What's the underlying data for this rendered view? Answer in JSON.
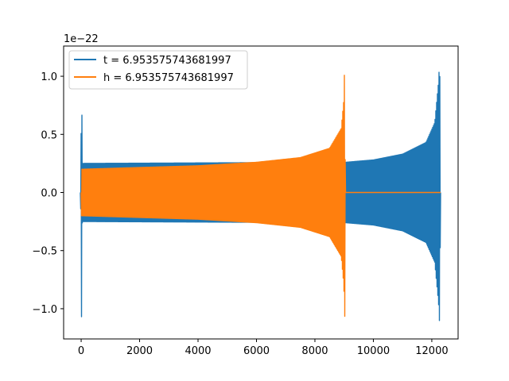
{
  "chart_data": {
    "type": "line",
    "title": "",
    "xlabel": "",
    "ylabel": "",
    "offset_text": "1e−22",
    "xlim": [
      -600,
      12900
    ],
    "ylim": [
      -1.26,
      1.26
    ],
    "xticks": [
      0,
      2000,
      4000,
      6000,
      8000,
      10000,
      12000
    ],
    "xtick_labels": [
      "0",
      "2000",
      "4000",
      "6000",
      "8000",
      "10000",
      "12000"
    ],
    "yticks": [
      -1.0,
      -0.5,
      0.0,
      0.5,
      1.0
    ],
    "ytick_labels": [
      "−1.0",
      "−0.5",
      "0.0",
      "0.5",
      "1.0"
    ],
    "grid": false,
    "legend_position": "upper-left",
    "series": [
      {
        "name": "t = 6.953575743681997",
        "color": "#1f77b4",
        "description": "oscillating waveform, burst near x=0, then growing envelope up to merger near x~12280",
        "envelope": [
          {
            "x": -20,
            "amp": 0.0
          },
          {
            "x": 0,
            "amp": 0.54
          },
          {
            "x": 10,
            "amp": 1.14
          },
          {
            "x": 40,
            "amp": 0.25
          },
          {
            "x": 9050,
            "amp": 0.26
          },
          {
            "x": 10000,
            "amp": 0.28
          },
          {
            "x": 11000,
            "amp": 0.33
          },
          {
            "x": 11800,
            "amp": 0.43
          },
          {
            "x": 12100,
            "amp": 0.6
          },
          {
            "x": 12230,
            "amp": 0.95
          },
          {
            "x": 12270,
            "amp": 1.15
          },
          {
            "x": 12300,
            "amp": 0.0
          }
        ]
      },
      {
        "name": "h = 6.953575743681997",
        "color": "#ff7f0e",
        "description": "oscillating waveform with growing envelope until merger near x~9030, then flat at zero",
        "envelope": [
          {
            "x": 0,
            "amp": 0.0
          },
          {
            "x": 10,
            "amp": 0.2
          },
          {
            "x": 2000,
            "amp": 0.215
          },
          {
            "x": 4000,
            "amp": 0.23
          },
          {
            "x": 6000,
            "amp": 0.26
          },
          {
            "x": 7500,
            "amp": 0.3
          },
          {
            "x": 8500,
            "amp": 0.38
          },
          {
            "x": 8900,
            "amp": 0.55
          },
          {
            "x": 8990,
            "amp": 0.8
          },
          {
            "x": 9020,
            "amp": 1.15
          },
          {
            "x": 9040,
            "amp": 0.0
          },
          {
            "x": 12300,
            "amp": 0.0
          }
        ]
      }
    ]
  }
}
